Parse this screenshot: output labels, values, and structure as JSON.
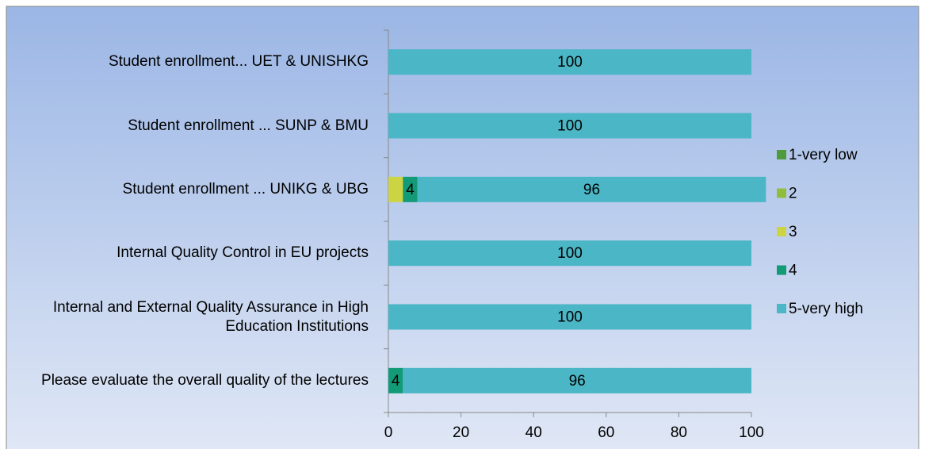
{
  "chart_data": {
    "type": "stacked_barh",
    "categories": [
      "Student enrollment... UET & UNISHKG",
      "Student enrollment ... SUNP & BMU",
      "Student enrollment ... UNIKG & UBG",
      "Internal Quality Control in EU projects",
      "Internal and External Quality Assurance in High Education Institutions",
      "Please evaluate the overall quality of the lectures"
    ],
    "series": [
      {
        "name": "1-very low",
        "color": "#4f9a3c",
        "values": [
          0,
          0,
          0,
          0,
          0,
          0
        ],
        "data_labels": false
      },
      {
        "name": "2",
        "color": "#92bd3c",
        "values": [
          0,
          0,
          0,
          0,
          0,
          0
        ],
        "data_labels": false
      },
      {
        "name": "3",
        "color": "#cdd443",
        "values": [
          0,
          0,
          4,
          0,
          0,
          0
        ],
        "data_labels": false
      },
      {
        "name": "4",
        "color": "#139a76",
        "values": [
          0,
          0,
          4,
          0,
          0,
          4
        ],
        "data_labels": true
      },
      {
        "name": "5-very high",
        "color": "#4bb6c5",
        "values": [
          100,
          100,
          96,
          100,
          100,
          96
        ],
        "data_labels": true
      }
    ],
    "xlim": [
      0,
      100
    ],
    "xticks": [
      0,
      20,
      40,
      60,
      80,
      100
    ]
  }
}
